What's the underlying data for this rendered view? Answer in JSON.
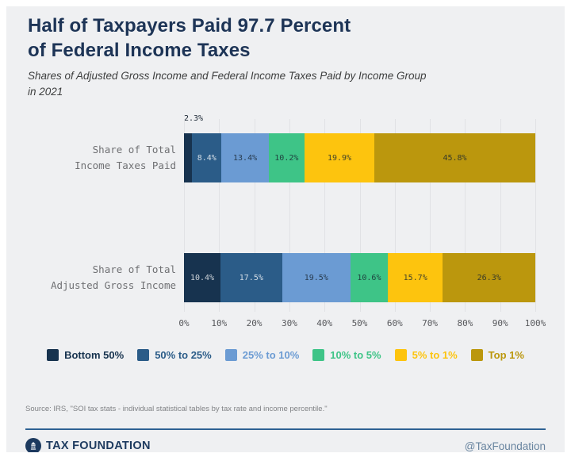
{
  "page": {
    "background": "#ffffff",
    "card_background": "#eff0f2"
  },
  "header": {
    "title": "Half of Taxpayers Paid 97.7 Percent\nof Federal Income Taxes",
    "subtitle": "Shares of Adjusted Gross Income and Federal Income Taxes Paid by Income Group\nin 2021"
  },
  "chart_data": {
    "type": "bar",
    "orientation": "horizontal",
    "stacked": true,
    "unit": "%",
    "categories": [
      "Share of Total\nIncome Taxes Paid",
      "Share of Total\nAdjusted Gross Income"
    ],
    "series": [
      {
        "name": "Bottom 50%",
        "color": "#17334f",
        "label_text": "light",
        "values": [
          2.3,
          10.4
        ]
      },
      {
        "name": "50% to 25%",
        "color": "#2b5c88",
        "label_text": "light",
        "values": [
          8.4,
          17.5
        ]
      },
      {
        "name": "25% to 10%",
        "color": "#6b9bd3",
        "label_text": "dark",
        "values": [
          13.4,
          19.5
        ]
      },
      {
        "name": "10% to 5%",
        "color": "#3ec487",
        "label_text": "dark",
        "values": [
          10.2,
          10.6
        ]
      },
      {
        "name": "5% to 1%",
        "color": "#fdc40e",
        "label_text": "dark",
        "values": [
          19.9,
          15.7
        ]
      },
      {
        "name": "Top 1%",
        "color": "#bb970d",
        "label_text": "dark",
        "values": [
          45.8,
          26.3
        ]
      }
    ],
    "xlim": [
      0,
      100
    ],
    "x_ticks": [
      "0%",
      "10%",
      "20%",
      "30%",
      "40%",
      "50%",
      "60%",
      "70%",
      "80%",
      "90%",
      "100%"
    ],
    "grid": true,
    "legend_position": "bottom",
    "annotations": [
      {
        "text": "2.3%",
        "row": 0,
        "position": "above-first-segment"
      }
    ],
    "min_inbar_label_value": 5
  },
  "footer": {
    "source": "Source: IRS, \"SOI tax stats - individual statistical tables by tax rate and income percentile.\"",
    "brand": "TAX FOUNDATION",
    "handle": "@TaxFoundation",
    "accent_color": "#2e6293"
  }
}
